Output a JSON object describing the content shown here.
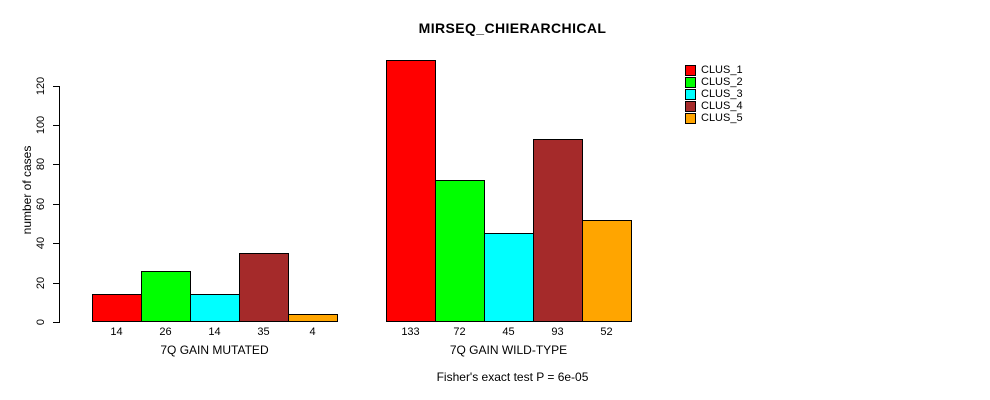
{
  "chart_data": {
    "type": "bar",
    "title": "MIRSEQ_CHIERARCHICAL",
    "ylabel": "number of cases",
    "xlabel": "",
    "yticks": [
      0,
      20,
      40,
      60,
      80,
      100,
      120
    ],
    "ylim": [
      0,
      135
    ],
    "grid": false,
    "bar_value_labels": true,
    "legend_position": "top-right",
    "categories": [
      "7Q GAIN MUTATED",
      "7Q GAIN WILD-TYPE"
    ],
    "series": [
      {
        "name": "CLUS_1",
        "color": "#ff0000",
        "values": [
          14,
          133
        ]
      },
      {
        "name": "CLUS_2",
        "color": "#00ff00",
        "values": [
          26,
          72
        ]
      },
      {
        "name": "CLUS_3",
        "color": "#00ffff",
        "values": [
          14,
          45
        ]
      },
      {
        "name": "CLUS_4",
        "color": "#a52a2a",
        "values": [
          35,
          93
        ]
      },
      {
        "name": "CLUS_5",
        "color": "#ffa500",
        "values": [
          4,
          52
        ]
      }
    ],
    "footnote": "Fisher's exact test P = 6e-05"
  }
}
